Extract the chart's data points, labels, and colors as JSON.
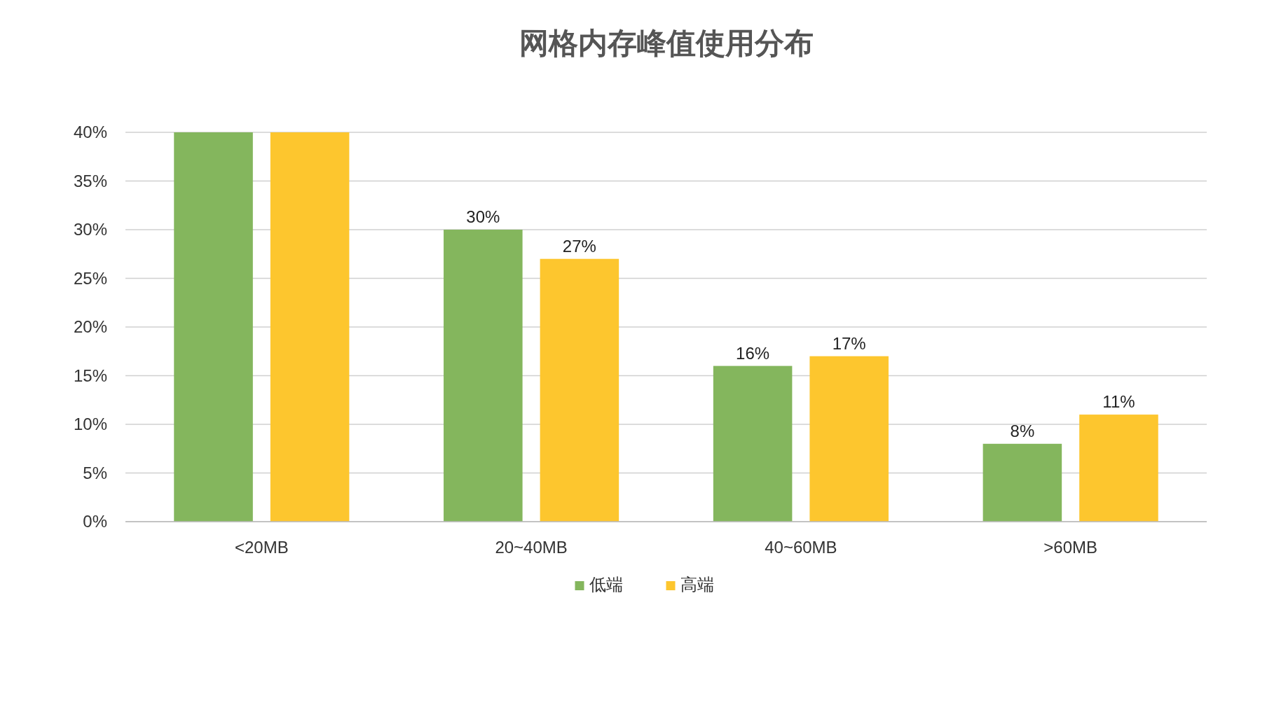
{
  "chart_data": {
    "type": "bar",
    "title": "网格内存峰值使用分布",
    "categories": [
      "<20MB",
      "20~40MB",
      "40~60MB",
      ">60MB"
    ],
    "series": [
      {
        "name": "低端",
        "color": "#84b65d",
        "values": [
          40,
          30,
          16,
          8
        ],
        "value_labels": [
          null,
          "30%",
          "16%",
          "8%"
        ]
      },
      {
        "name": "高端",
        "color": "#fdc62e",
        "values": [
          40,
          27,
          17,
          11
        ],
        "value_labels": [
          null,
          "27%",
          "17%",
          "11%"
        ]
      }
    ],
    "ylim": [
      0,
      40
    ],
    "yticks": [
      {
        "value": 0,
        "label": "0%"
      },
      {
        "value": 5,
        "label": "5%"
      },
      {
        "value": 10,
        "label": "10%"
      },
      {
        "value": 15,
        "label": "15%"
      },
      {
        "value": 20,
        "label": "20%"
      },
      {
        "value": 25,
        "label": "25%"
      },
      {
        "value": 30,
        "label": "30%"
      },
      {
        "value": 35,
        "label": "35%"
      },
      {
        "value": 40,
        "label": "40%"
      }
    ],
    "grid": "y",
    "legend": "bottom"
  }
}
